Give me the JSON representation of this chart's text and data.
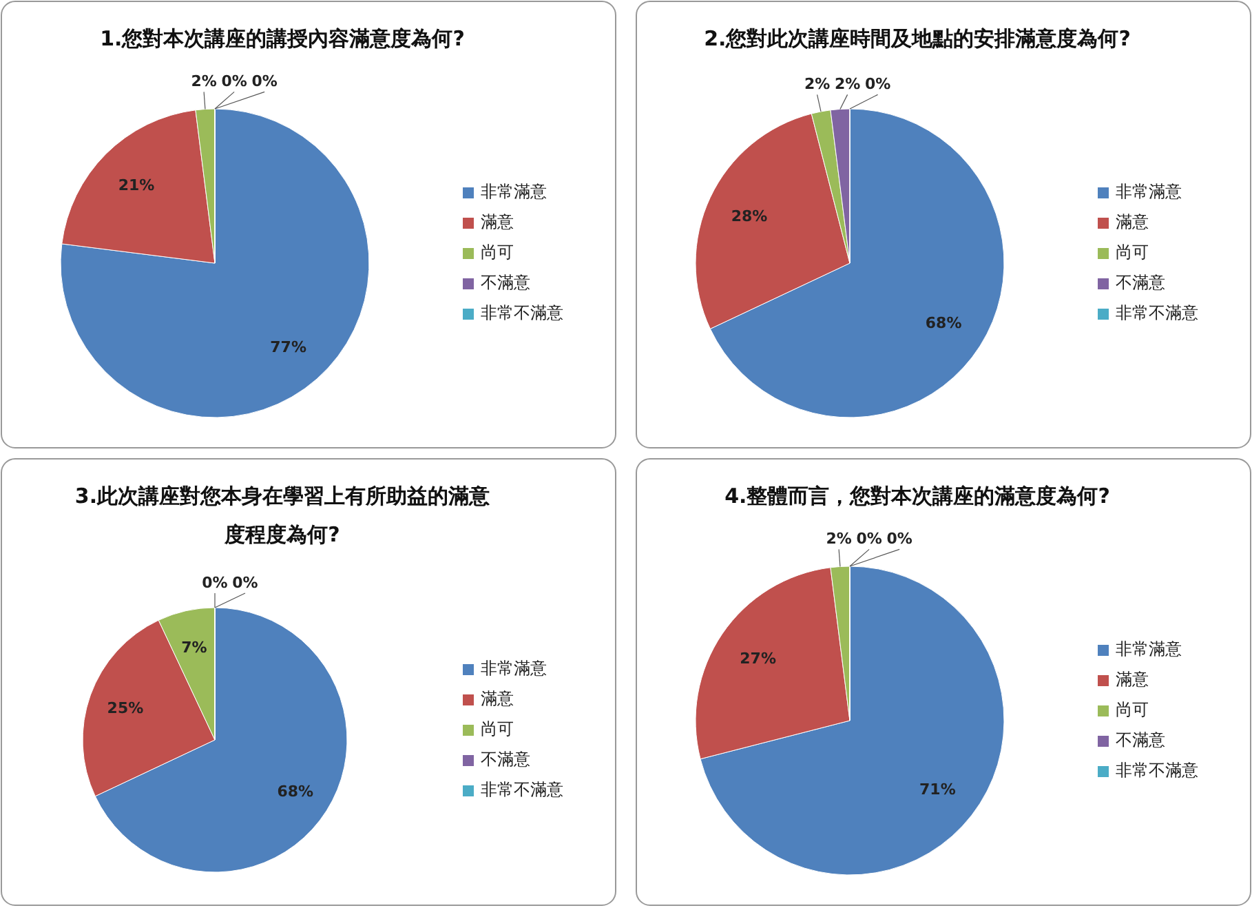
{
  "chart_data": [
    {
      "type": "pie",
      "title": "1.您對本次講座的講授內容滿意度為何?",
      "categories": [
        "非常滿意",
        "滿意",
        "尚可",
        "不滿意",
        "非常不滿意"
      ],
      "values": [
        77,
        21,
        2,
        0,
        0
      ],
      "value_labels": [
        "77%",
        "21%",
        "2%",
        "0%",
        "0%"
      ],
      "colors": [
        "#4f81bd",
        "#c0504d",
        "#9bbb59",
        "#8064a2",
        "#4bacc6"
      ],
      "legend": "right"
    },
    {
      "type": "pie",
      "title": "2.您對此次講座時間及地點的安排滿意度為何?",
      "categories": [
        "非常滿意",
        "滿意",
        "尚可",
        "不滿意",
        "非常不滿意"
      ],
      "values": [
        68,
        28,
        2,
        2,
        0
      ],
      "value_labels": [
        "68%",
        "28%",
        "2%",
        "2%",
        "0%"
      ],
      "colors": [
        "#4f81bd",
        "#c0504d",
        "#9bbb59",
        "#8064a2",
        "#4bacc6"
      ],
      "legend": "right"
    },
    {
      "type": "pie",
      "title": "3.此次講座對您本身在學習上有所助益的滿意度程度為何?",
      "categories": [
        "非常滿意",
        "滿意",
        "尚可",
        "不滿意",
        "非常不滿意"
      ],
      "values": [
        68,
        25,
        7,
        0,
        0
      ],
      "value_labels": [
        "68%",
        "25%",
        "7%",
        "0%",
        "0%"
      ],
      "colors": [
        "#4f81bd",
        "#c0504d",
        "#9bbb59",
        "#8064a2",
        "#4bacc6"
      ],
      "legend": "right"
    },
    {
      "type": "pie",
      "title": "4.整體而言，您對本次講座的滿意度為何?",
      "categories": [
        "非常滿意",
        "滿意",
        "尚可",
        "不滿意",
        "非常不滿意"
      ],
      "values": [
        71,
        27,
        2,
        0,
        0
      ],
      "value_labels": [
        "71%",
        "27%",
        "2%",
        "0%",
        "0%"
      ],
      "colors": [
        "#4f81bd",
        "#c0504d",
        "#9bbb59",
        "#8064a2",
        "#4bacc6"
      ],
      "legend": "right"
    }
  ]
}
